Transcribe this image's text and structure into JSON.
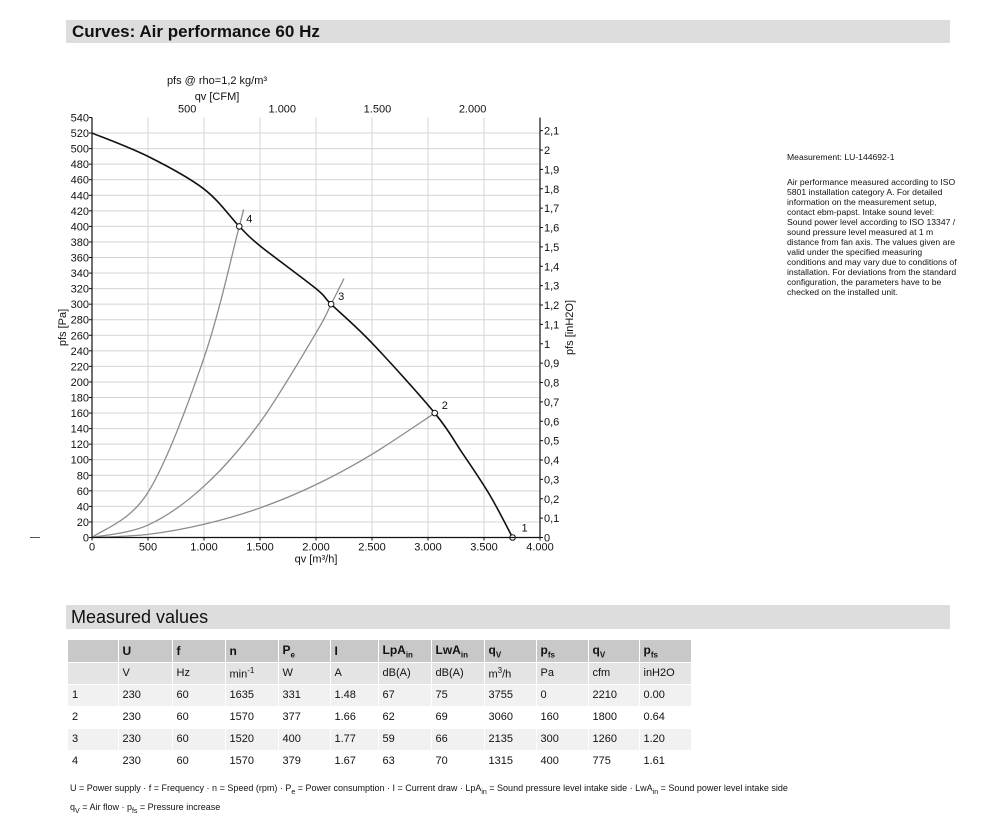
{
  "header": {
    "title": "Curves: Air performance 60 Hz"
  },
  "notes": {
    "measurement": "Measurement: LU-144692-1",
    "description": "Air performance measured according to ISO 5801 installation category A. For detailed information on the measurement setup, contact ebm-papst. Intake sound level: Sound power level according to ISO 13347 / sound pressure level measured at 1 m distance from fan axis. The values given are valid under the specified measuring conditions and may vary due to conditions of installation. For deviations from the standard configuration, the parameters have to be checked on the installed unit."
  },
  "chart_data": {
    "type": "line",
    "title": "pfs @ rho=1,2 kg/m³",
    "xlabel": "qv [m³/h]",
    "ylabel": "pfs [Pa]",
    "x2label": "qv [CFM]",
    "y2label": "pfs [inH2O]",
    "xlim": [
      0,
      4000
    ],
    "ylim": [
      0,
      540
    ],
    "x_ticks": [
      "0",
      "500",
      "1.000",
      "1.500",
      "2.000",
      "2.500",
      "3.000",
      "3.500",
      "4.000"
    ],
    "y_ticks": [
      "0",
      "20",
      "40",
      "60",
      "80",
      "100",
      "120",
      "140",
      "160",
      "180",
      "200",
      "220",
      "240",
      "260",
      "280",
      "300",
      "320",
      "340",
      "360",
      "380",
      "400",
      "420",
      "440",
      "460",
      "480",
      "500",
      "520",
      "540"
    ],
    "x2_ticks": [
      {
        "label": "500",
        "value": 500
      },
      {
        "label": "1.000",
        "value": 1000
      },
      {
        "label": "1.500",
        "value": 1500
      },
      {
        "label": "2.000",
        "value": 2000
      }
    ],
    "y2_ticks": [
      "0",
      "0,1",
      "0,2",
      "0,3",
      "0,4",
      "0,5",
      "0,6",
      "0,7",
      "0,8",
      "0,9",
      "1",
      "1,1",
      "1,2",
      "1,3",
      "1,4",
      "1,5",
      "1,6",
      "1,7",
      "1,8",
      "1,9",
      "2",
      "2,1"
    ],
    "grid": true,
    "series": [
      {
        "x": [
          0,
          500,
          1000,
          1315,
          1500,
          2000,
          2135,
          2500,
          3060,
          3300,
          3550,
          3755
        ],
        "y": [
          520,
          490,
          448,
          400,
          375,
          320,
          300,
          250,
          160,
          110,
          55,
          0
        ]
      }
    ],
    "resistance_curves": [
      {
        "label": "2",
        "x": [
          0,
          500,
          1000,
          1500,
          2000,
          2500,
          3060
        ],
        "y": [
          0,
          4,
          17,
          38,
          68,
          107,
          160
        ]
      },
      {
        "label": "3",
        "x": [
          0,
          500,
          1000,
          1500,
          2000,
          2135,
          2250
        ],
        "y": [
          0,
          16,
          66,
          148,
          263,
          300,
          333
        ]
      },
      {
        "label": "4",
        "x": [
          0,
          500,
          1000,
          1315,
          1350
        ],
        "y": [
          0,
          58,
          231,
          400,
          421
        ]
      }
    ],
    "operating_points": [
      {
        "label": "1",
        "x": 3755,
        "y": 0
      },
      {
        "label": "2",
        "x": 3060,
        "y": 160
      },
      {
        "label": "3",
        "x": 2135,
        "y": 300
      },
      {
        "label": "4",
        "x": 1315,
        "y": 400
      }
    ]
  },
  "measured": {
    "title": "Measured values",
    "headers": [
      {
        "main": "",
        "sub": ""
      },
      {
        "main": "U",
        "sub": ""
      },
      {
        "main": "f",
        "sub": ""
      },
      {
        "main": "n",
        "sub": ""
      },
      {
        "main": "P",
        "sub": "e"
      },
      {
        "main": "I",
        "sub": ""
      },
      {
        "main": "LpA",
        "sub": "in"
      },
      {
        "main": "LwA",
        "sub": "in"
      },
      {
        "main": "q",
        "sub": "V"
      },
      {
        "main": "p",
        "sub": "fs"
      },
      {
        "main": "q",
        "sub": "V"
      },
      {
        "main": "p",
        "sub": "fs"
      }
    ],
    "units": [
      {
        "main": "",
        "sup": ""
      },
      {
        "main": "V",
        "sup": ""
      },
      {
        "main": "Hz",
        "sup": ""
      },
      {
        "main": "min",
        "sup": "-1"
      },
      {
        "main": "W",
        "sup": ""
      },
      {
        "main": "A",
        "sup": ""
      },
      {
        "main": "dB(A)",
        "sup": ""
      },
      {
        "main": "dB(A)",
        "sup": ""
      },
      {
        "main": "m",
        "sup": "3",
        "tail": "/h"
      },
      {
        "main": "Pa",
        "sup": ""
      },
      {
        "main": "cfm",
        "sup": ""
      },
      {
        "main": "inH2O",
        "sup": ""
      }
    ],
    "rows": [
      [
        "1",
        "230",
        "60",
        "1635",
        "331",
        "1.48",
        "67",
        "75",
        "3755",
        "0",
        "2210",
        "0.00"
      ],
      [
        "2",
        "230",
        "60",
        "1570",
        "377",
        "1.66",
        "62",
        "69",
        "3060",
        "160",
        "1800",
        "0.64"
      ],
      [
        "3",
        "230",
        "60",
        "1520",
        "400",
        "1.77",
        "59",
        "66",
        "2135",
        "300",
        "1260",
        "1.20"
      ],
      [
        "4",
        "230",
        "60",
        "1570",
        "379",
        "1.67",
        "63",
        "70",
        "1315",
        "400",
        "775",
        "1.61"
      ]
    ]
  },
  "legend": {
    "line1": "U = Power supply · f = Frequency · n = Speed (rpm) · P",
    "line1_pe_sub": "e",
    "line1b": " = Power consumption · I = Current draw · LpA",
    "line1_in_sub": "in",
    "line1c": " = Sound pressure level intake side · LwA",
    "line1_in_sub2": "in",
    "line1d": " = Sound power level intake side",
    "line2a": "q",
    "line2_v_sub": "V",
    "line2b": " = Air flow · p",
    "line2_fs_sub": "fs",
    "line2c": " = Pressure increase"
  }
}
